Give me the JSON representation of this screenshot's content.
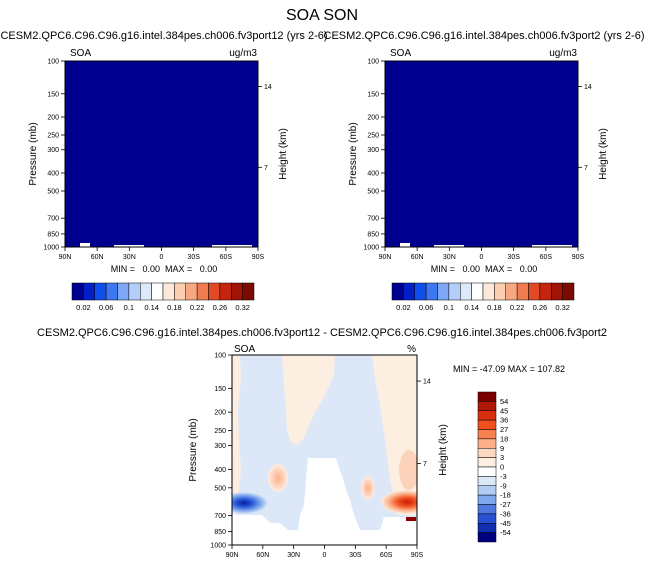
{
  "figure_title": "SOA SON",
  "chart_data": [
    {
      "type": "heatmap",
      "title": "CESM2.QPC6.C96.C96.g16.intel.384pes.ch006.fv3port12 (yrs 2-6)",
      "left_label": "SOA",
      "units": "ug/m3",
      "ylabel": "Pressure (mb)",
      "ylabel_right": "Height (km)",
      "x_ticks": [
        "90N",
        "60N",
        "30N",
        "0",
        "30S",
        "60S",
        "90S"
      ],
      "y_ticks": [
        100,
        150,
        200,
        250,
        300,
        400,
        500,
        700,
        850,
        1000
      ],
      "y_ticks_right": [
        14,
        7
      ],
      "ylim": [
        100,
        1000
      ],
      "stats": "MIN =   0.00  MAX =   0.00",
      "min": 0.0,
      "max": 0.0,
      "field_color": "#00008f",
      "colorbar": {
        "labels": [
          "0.02",
          "0.06",
          "0.1",
          "0.14",
          "0.18",
          "0.22",
          "0.26",
          "0.32"
        ],
        "colors": [
          "#00008f",
          "#0320c8",
          "#1050e8",
          "#3c78f0",
          "#7ea8f6",
          "#b4cdf9",
          "#dde8fb",
          "#ffffff",
          "#fde8dc",
          "#fbcfb4",
          "#f7a880",
          "#f07c52",
          "#e24a26",
          "#c4250e",
          "#a01406",
          "#7a0a02"
        ]
      }
    },
    {
      "type": "heatmap",
      "title": "CESM2.QPC6.C96.C96.g16.intel.384pes.ch006.fv3port2 (yrs 2-6)",
      "left_label": "SOA",
      "units": "ug/m3",
      "ylabel": "Pressure (mb)",
      "ylabel_right": "Height (km)",
      "x_ticks": [
        "90N",
        "60N",
        "30N",
        "0",
        "30S",
        "60S",
        "90S"
      ],
      "y_ticks": [
        100,
        150,
        200,
        250,
        300,
        400,
        500,
        700,
        850,
        1000
      ],
      "y_ticks_right": [
        14,
        7
      ],
      "ylim": [
        100,
        1000
      ],
      "stats": "MIN =   0.00  MAX =   0.00",
      "min": 0.0,
      "max": 0.0,
      "field_color": "#00008f",
      "colorbar": {
        "labels": [
          "0.02",
          "0.06",
          "0.1",
          "0.14",
          "0.18",
          "0.22",
          "0.26",
          "0.32"
        ],
        "colors": [
          "#00008f",
          "#0320c8",
          "#1050e8",
          "#3c78f0",
          "#7ea8f6",
          "#b4cdf9",
          "#dde8fb",
          "#ffffff",
          "#fde8dc",
          "#fbcfb4",
          "#f7a880",
          "#f07c52",
          "#e24a26",
          "#c4250e",
          "#a01406",
          "#7a0a02"
        ]
      }
    },
    {
      "type": "heatmap",
      "title": "CESM2.QPC6.C96.C96.g16.intel.384pes.ch006.fv3port12 - CESM2.QPC6.C96.C96.g16.intel.384pes.ch006.fv3port2",
      "left_label": "SOA",
      "units": "%",
      "ylabel": "Pressure (mb)",
      "ylabel_right": "Height (km)",
      "x_ticks": [
        "90N",
        "60N",
        "30N",
        "0",
        "30S",
        "60S",
        "90S"
      ],
      "y_ticks": [
        100,
        150,
        200,
        250,
        300,
        400,
        500,
        700,
        850,
        1000
      ],
      "y_ticks_right": [
        14,
        7
      ],
      "ylim": [
        100,
        1000
      ],
      "stats": "MIN = -47.09  MAX = 107.82",
      "min": -47.09,
      "max": 107.82,
      "colorbar": {
        "labels": [
          "54",
          "45",
          "36",
          "27",
          "18",
          "9",
          "3",
          "0",
          "-3",
          "-9",
          "-18",
          "-27",
          "-36",
          "-45",
          "-54"
        ],
        "colors": [
          "#7a0000",
          "#b01808",
          "#d63010",
          "#f05020",
          "#f88050",
          "#fbb08a",
          "#fdd8c0",
          "#fdeee2",
          "#ffffff",
          "#dce8f8",
          "#b0ccf2",
          "#80a8ec",
          "#5078e0",
          "#2850d0",
          "#1030b0",
          "#000080"
        ]
      }
    }
  ]
}
